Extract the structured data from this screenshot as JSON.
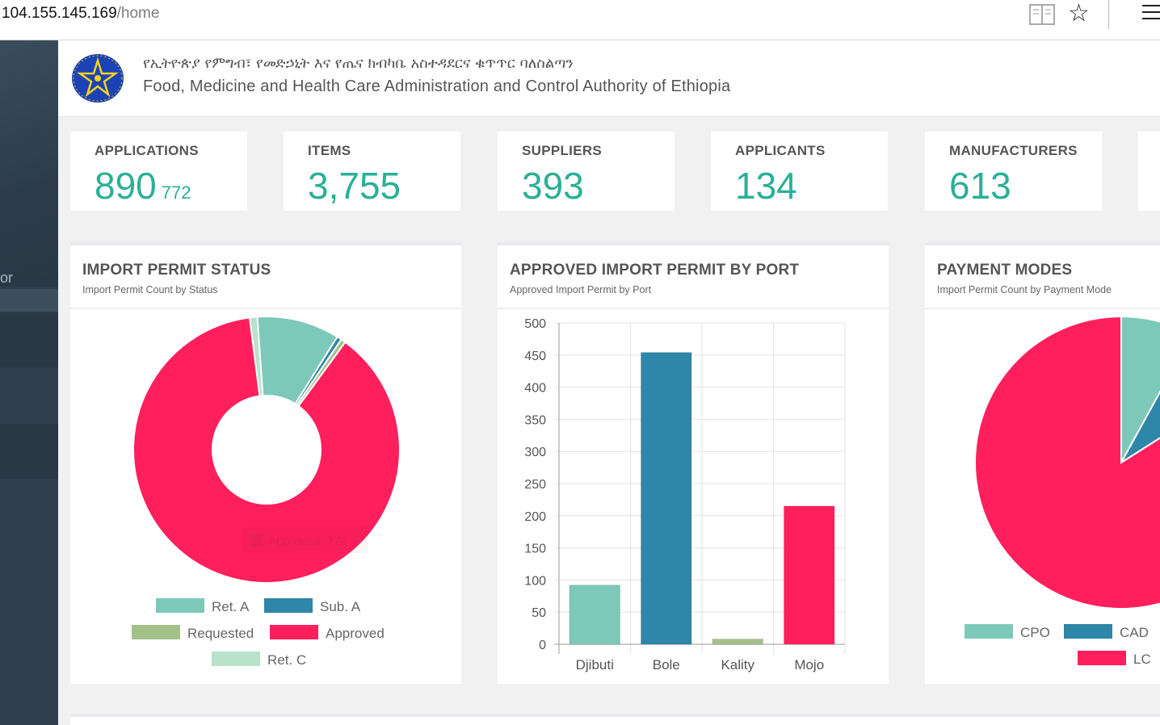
{
  "browser": {
    "host": "104.155.145.169",
    "path": "/home",
    "reader_icon": "reader-view-icon",
    "star_icon": "favorite-star-icon",
    "menu_icon": "hamburger-menu-icon"
  },
  "sidebar": {
    "partial_text": "or"
  },
  "header": {
    "title_amharic": "የኢትዮጵያ የምግብ፣ የመድኃኒት እና የጤና ክብካቤ አስተዳደርና ቁጥጥር ባለስልጣን",
    "title_english": "Food, Medicine and Health Care Administration and Control Authority of Ethiopia",
    "emblem_icon": "ethiopia-emblem-icon"
  },
  "stats": [
    {
      "label": "APPLICATIONS",
      "value": "890",
      "sub": "772"
    },
    {
      "label": "ITEMS",
      "value": "3,755"
    },
    {
      "label": "SUPPLIERS",
      "value": "393"
    },
    {
      "label": "APPLICANTS",
      "value": "134"
    },
    {
      "label": "MANUFACTURERS",
      "value": "613"
    }
  ],
  "colors": {
    "teal": "#7dc9b9",
    "blue": "#2e86a8",
    "green": "#a4c18a",
    "pink": "#ff1f5c",
    "mint": "#b8e2c9",
    "stat": "#2bb096"
  },
  "panels": {
    "import_status": {
      "title": "IMPORT PERMIT STATUS",
      "subtitle": "Import Permit Count by Status",
      "tooltip": "Approved: 772"
    },
    "by_port": {
      "title": "APPROVED IMPORT PERMIT BY PORT",
      "subtitle": "Approved Import Permit by Port"
    },
    "payment": {
      "title": "PAYMENT MODES",
      "subtitle": "Import Permit Count by Payment Mode"
    }
  },
  "chart_data": [
    {
      "type": "pie",
      "title": "IMPORT PERMIT STATUS",
      "subtitle": "Import Permit Count by Status",
      "categories": [
        "Ret. A",
        "Sub. A",
        "Requested",
        "Approved",
        "Ret. C"
      ],
      "values": [
        88,
        5,
        5,
        772,
        8
      ],
      "colors": [
        "#7dc9b9",
        "#2e86a8",
        "#a4c18a",
        "#ff1f5c",
        "#b8e2c9"
      ],
      "donut": true,
      "legend": "bottom"
    },
    {
      "type": "bar",
      "title": "APPROVED IMPORT PERMIT BY PORT",
      "subtitle": "Approved Import Permit by Port",
      "categories": [
        "Djibuti",
        "Bole",
        "Kality",
        "Mojo"
      ],
      "values": [
        92,
        454,
        8,
        215
      ],
      "colors": [
        "#7dc9b9",
        "#2e86a8",
        "#a4c18a",
        "#ff1f5c"
      ],
      "ylim": [
        0,
        500
      ],
      "yticks": [
        "500",
        "450",
        "400",
        "350",
        "300",
        "250",
        "200",
        "150",
        "100",
        "50",
        "0"
      ],
      "grid": true
    },
    {
      "type": "pie",
      "title": "PAYMENT MODES",
      "subtitle": "Import Permit Count by Payment Mode",
      "categories": [
        "CPO",
        "CAD",
        "LC"
      ],
      "values": [
        8,
        8,
        84
      ],
      "colors": [
        "#7dc9b9",
        "#2e86a8",
        "#ff1f5c"
      ],
      "legend": "bottom"
    }
  ]
}
